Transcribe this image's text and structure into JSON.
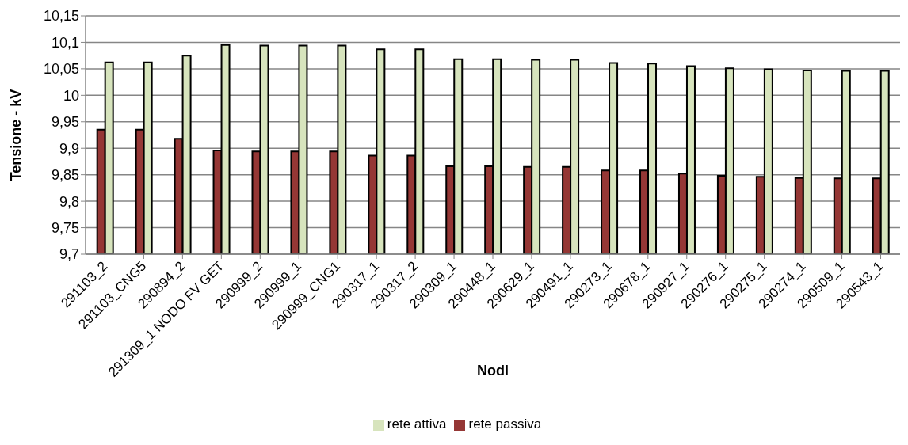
{
  "chart_data": {
    "type": "bar",
    "xlabel": "Nodi",
    "ylabel": "Tensione - kV",
    "categories": [
      "291103_2",
      "291103_CNG5",
      "290894_2",
      "291309_1 NODO FV GET",
      "290999_2",
      "290999_1",
      "290999_CNG1",
      "290317_1",
      "290317_2",
      "290309_1",
      "290448_1",
      "290629_1",
      "290491_1",
      "290273_1",
      "290678_1",
      "290927_1",
      "290276_1",
      "290275_1",
      "290274_1",
      "290509_1",
      "290543_1"
    ],
    "series": [
      {
        "name": "rete passiva",
        "color": "#953735",
        "values": [
          9.935,
          9.935,
          9.918,
          9.896,
          9.894,
          9.894,
          9.894,
          9.886,
          9.886,
          9.866,
          9.866,
          9.865,
          9.865,
          9.858,
          9.858,
          9.852,
          9.848,
          9.846,
          9.844,
          9.843,
          9.843
        ]
      },
      {
        "name": "rete attiva",
        "color": "#d7e4bd",
        "values": [
          10.062,
          10.062,
          10.075,
          10.095,
          10.094,
          10.094,
          10.094,
          10.087,
          10.087,
          10.068,
          10.068,
          10.067,
          10.067,
          10.061,
          10.06,
          10.055,
          10.051,
          10.049,
          10.047,
          10.046,
          10.046
        ]
      }
    ],
    "ylim": [
      9.7,
      10.15
    ],
    "yticks": [
      {
        "value": 9.7,
        "label": "9,7"
      },
      {
        "value": 9.75,
        "label": "9,75"
      },
      {
        "value": 9.8,
        "label": "9,8"
      },
      {
        "value": 9.85,
        "label": "9,85"
      },
      {
        "value": 9.9,
        "label": "9,9"
      },
      {
        "value": 9.95,
        "label": "9,95"
      },
      {
        "value": 10,
        "label": "10"
      },
      {
        "value": 10.05,
        "label": "10,05"
      },
      {
        "value": 10.1,
        "label": "10,1"
      },
      {
        "value": 10.15,
        "label": "10,15"
      }
    ],
    "grid": "y",
    "legend": "bottom"
  }
}
